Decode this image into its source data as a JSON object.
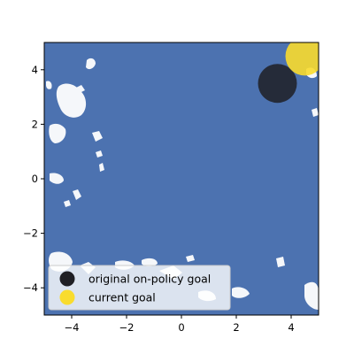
{
  "chart_data": {
    "type": "scatter",
    "title": "",
    "xlabel": "",
    "ylabel": "",
    "xlim": [
      -5,
      5
    ],
    "ylim": [
      -5,
      5
    ],
    "x_ticks": [
      -4,
      -2,
      0,
      2,
      4
    ],
    "y_ticks": [
      -4,
      -2,
      0,
      2,
      4
    ],
    "grid": false,
    "legend_position": "lower-left",
    "background_field_color": "#4c72b0",
    "series": [
      {
        "name": "original on-policy goal",
        "color": "#1f1f24",
        "points": [
          {
            "x": 3.5,
            "y": 3.5
          }
        ]
      },
      {
        "name": "current goal",
        "color": "#f9dc2e",
        "points": [
          {
            "x": 4.5,
            "y": 4.5
          }
        ]
      }
    ],
    "x_tick_labels": [
      "−4",
      "−2",
      "0",
      "2",
      "4"
    ],
    "y_tick_labels": [
      "−4",
      "−2",
      "0",
      "2",
      "4"
    ]
  }
}
